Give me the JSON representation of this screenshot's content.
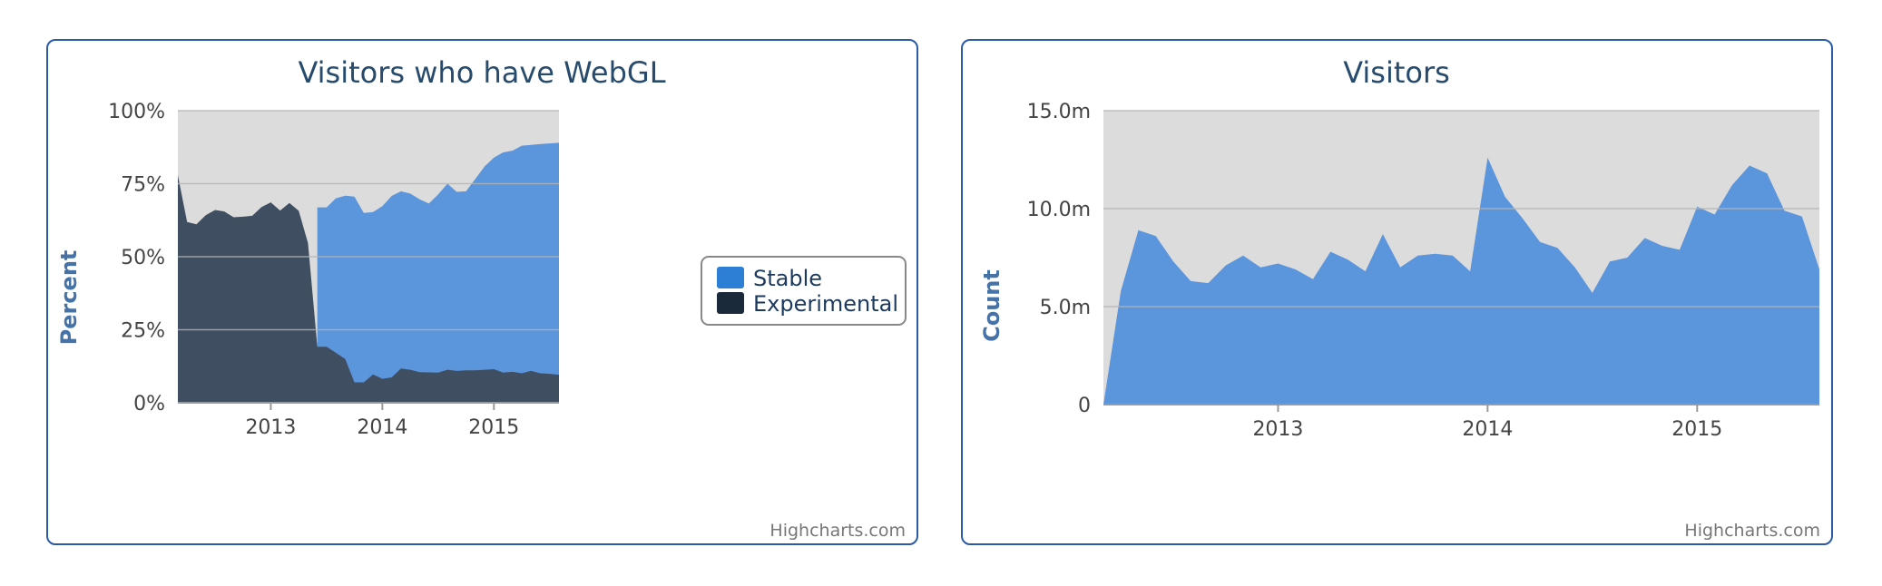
{
  "colors": {
    "stable": "#5b95dc",
    "experimental": "#3f4e61",
    "plot_bg": "#dcdcdc",
    "grid": "#b4b4b4",
    "legend_stable": "#2d7fd6",
    "legend_experimental": "#1b2a3a"
  },
  "chart_data": [
    {
      "type": "area",
      "title": "Visitors who have WebGL",
      "ylabel": "Percent",
      "xlabel": "",
      "ylim": [
        0,
        100
      ],
      "yticks": [
        "0%",
        "25%",
        "50%",
        "75%",
        "100%"
      ],
      "ytick_values": [
        0,
        25,
        50,
        75,
        100
      ],
      "xticks": [
        "2013",
        "2014",
        "2015"
      ],
      "xtick_values": [
        "2013-01",
        "2014-01",
        "2015-01"
      ],
      "x": [
        "2012-03",
        "2012-04",
        "2012-05",
        "2012-06",
        "2012-07",
        "2012-08",
        "2012-09",
        "2012-10",
        "2012-11",
        "2012-12",
        "2013-01",
        "2013-02",
        "2013-03",
        "2013-04",
        "2013-05",
        "2013-06",
        "2013-07",
        "2013-08",
        "2013-09",
        "2013-10",
        "2013-11",
        "2013-12",
        "2014-01",
        "2014-02",
        "2014-03",
        "2014-04",
        "2014-05",
        "2014-06",
        "2014-07",
        "2014-08",
        "2014-09",
        "2014-10",
        "2014-11",
        "2014-12",
        "2015-01",
        "2015-02",
        "2015-03",
        "2015-04",
        "2015-05",
        "2015-06",
        "2015-07",
        "2015-08"
      ],
      "series": [
        {
          "name": "Stable",
          "values": [
            null,
            null,
            null,
            null,
            null,
            null,
            null,
            null,
            null,
            null,
            null,
            null,
            null,
            null,
            null,
            66.9,
            66.9,
            70,
            70.9,
            70.6,
            65,
            65.3,
            67.3,
            70.8,
            72.4,
            71.6,
            69.7,
            68.2,
            71.3,
            75,
            72.2,
            72.4,
            76.6,
            80.9,
            83.9,
            85.7,
            86.3,
            88,
            88.3,
            88.6,
            88.8,
            89
          ]
        },
        {
          "name": "Experimental",
          "values": [
            77.9,
            61.9,
            61.1,
            64.2,
            66,
            65.5,
            63.5,
            63.7,
            64,
            67,
            68.6,
            65.8,
            68.4,
            65.7,
            54.7,
            19.2,
            19.2,
            17.1,
            15,
            7,
            7,
            9.7,
            8.2,
            8.7,
            11.7,
            11.3,
            10.5,
            10.4,
            10.3,
            11.3,
            10.9,
            11.1,
            11.1,
            11.3,
            11.5,
            10.3,
            10.6,
            10.1,
            10.9,
            10.1,
            9.9,
            9.6
          ]
        }
      ],
      "legend": {
        "position": "right",
        "items": [
          "Stable",
          "Experimental"
        ]
      },
      "credit": "Highcharts.com",
      "grid": true
    },
    {
      "type": "area",
      "title": "Visitors",
      "ylabel": "Count",
      "xlabel": "",
      "ylim": [
        0,
        15000000
      ],
      "yticks": [
        "0",
        "5.0m",
        "10.0m",
        "15.0m"
      ],
      "ytick_values": [
        0,
        5000000,
        10000000,
        15000000
      ],
      "xticks": [
        "2013",
        "2014",
        "2015"
      ],
      "xtick_values": [
        "2013-01",
        "2014-01",
        "2015-01"
      ],
      "x": [
        "2012-03",
        "2012-04",
        "2012-05",
        "2012-06",
        "2012-07",
        "2012-08",
        "2012-09",
        "2012-10",
        "2012-11",
        "2012-12",
        "2013-01",
        "2013-02",
        "2013-03",
        "2013-04",
        "2013-05",
        "2013-06",
        "2013-07",
        "2013-08",
        "2013-09",
        "2013-10",
        "2013-11",
        "2013-12",
        "2014-01",
        "2014-02",
        "2014-03",
        "2014-04",
        "2014-05",
        "2014-06",
        "2014-07",
        "2014-08",
        "2014-09",
        "2014-10",
        "2014-11",
        "2014-12",
        "2015-01",
        "2015-02",
        "2015-03",
        "2015-04",
        "2015-05",
        "2015-06",
        "2015-07",
        "2015-08"
      ],
      "series": [
        {
          "name": "Count",
          "values": [
            0,
            5800000,
            8900000,
            8600000,
            7300000,
            6300000,
            6200000,
            7100000,
            7600000,
            7000000,
            7200000,
            6900000,
            6400000,
            7800000,
            7400000,
            6800000,
            8700000,
            7000000,
            7600000,
            7700000,
            7600000,
            6800000,
            12600000,
            10600000,
            9500000,
            8300000,
            8000000,
            7000000,
            5700000,
            7300000,
            7500000,
            8500000,
            8100000,
            7900000,
            10100000,
            9700000,
            11200000,
            12200000,
            11800000,
            9900000,
            9600000,
            6900000
          ]
        }
      ],
      "credit": "Highcharts.com",
      "grid": true
    }
  ]
}
